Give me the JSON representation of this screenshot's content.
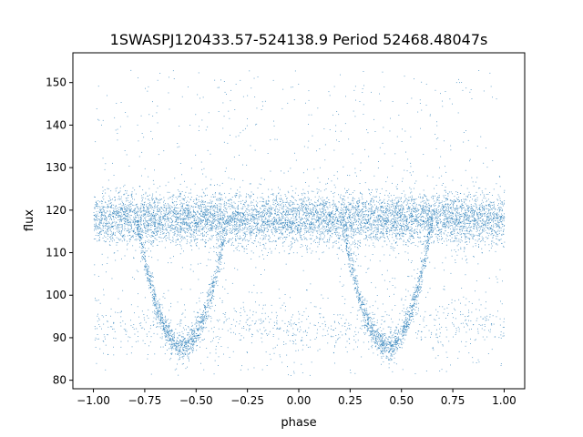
{
  "chart_data": {
    "type": "scatter",
    "title": "1SWASPJ120433.57-524138.9 Period 52468.48047s",
    "xlabel": "phase",
    "ylabel": "flux",
    "xlim": [
      -1.1,
      1.1
    ],
    "ylim": [
      78,
      157
    ],
    "xticks": [
      -1.0,
      -0.75,
      -0.5,
      -0.25,
      0.0,
      0.25,
      0.5,
      0.75,
      1.0
    ],
    "xtick_labels": [
      "−1.00",
      "−0.75",
      "−0.50",
      "−0.25",
      "0.00",
      "0.25",
      "0.50",
      "0.75",
      "1.00"
    ],
    "yticks": [
      80,
      90,
      100,
      110,
      120,
      130,
      140,
      150
    ],
    "ytick_labels": [
      "80",
      "90",
      "100",
      "110",
      "120",
      "130",
      "140",
      "150"
    ],
    "grid": false,
    "marker_color": "#1f77b4",
    "series": [
      {
        "description_note": "",
        "baseline_flux": 118,
        "baseline_spread": 3,
        "phase_range": [
          -1.0,
          1.0
        ],
        "eclipse_center_phases": [
          -0.57,
          0.43
        ],
        "eclipse_min_flux": 88,
        "eclipse_half_width_phase": 0.22,
        "secondary_cloud_flux": 93,
        "outlier_flux_range": [
          81,
          153
        ]
      }
    ]
  }
}
